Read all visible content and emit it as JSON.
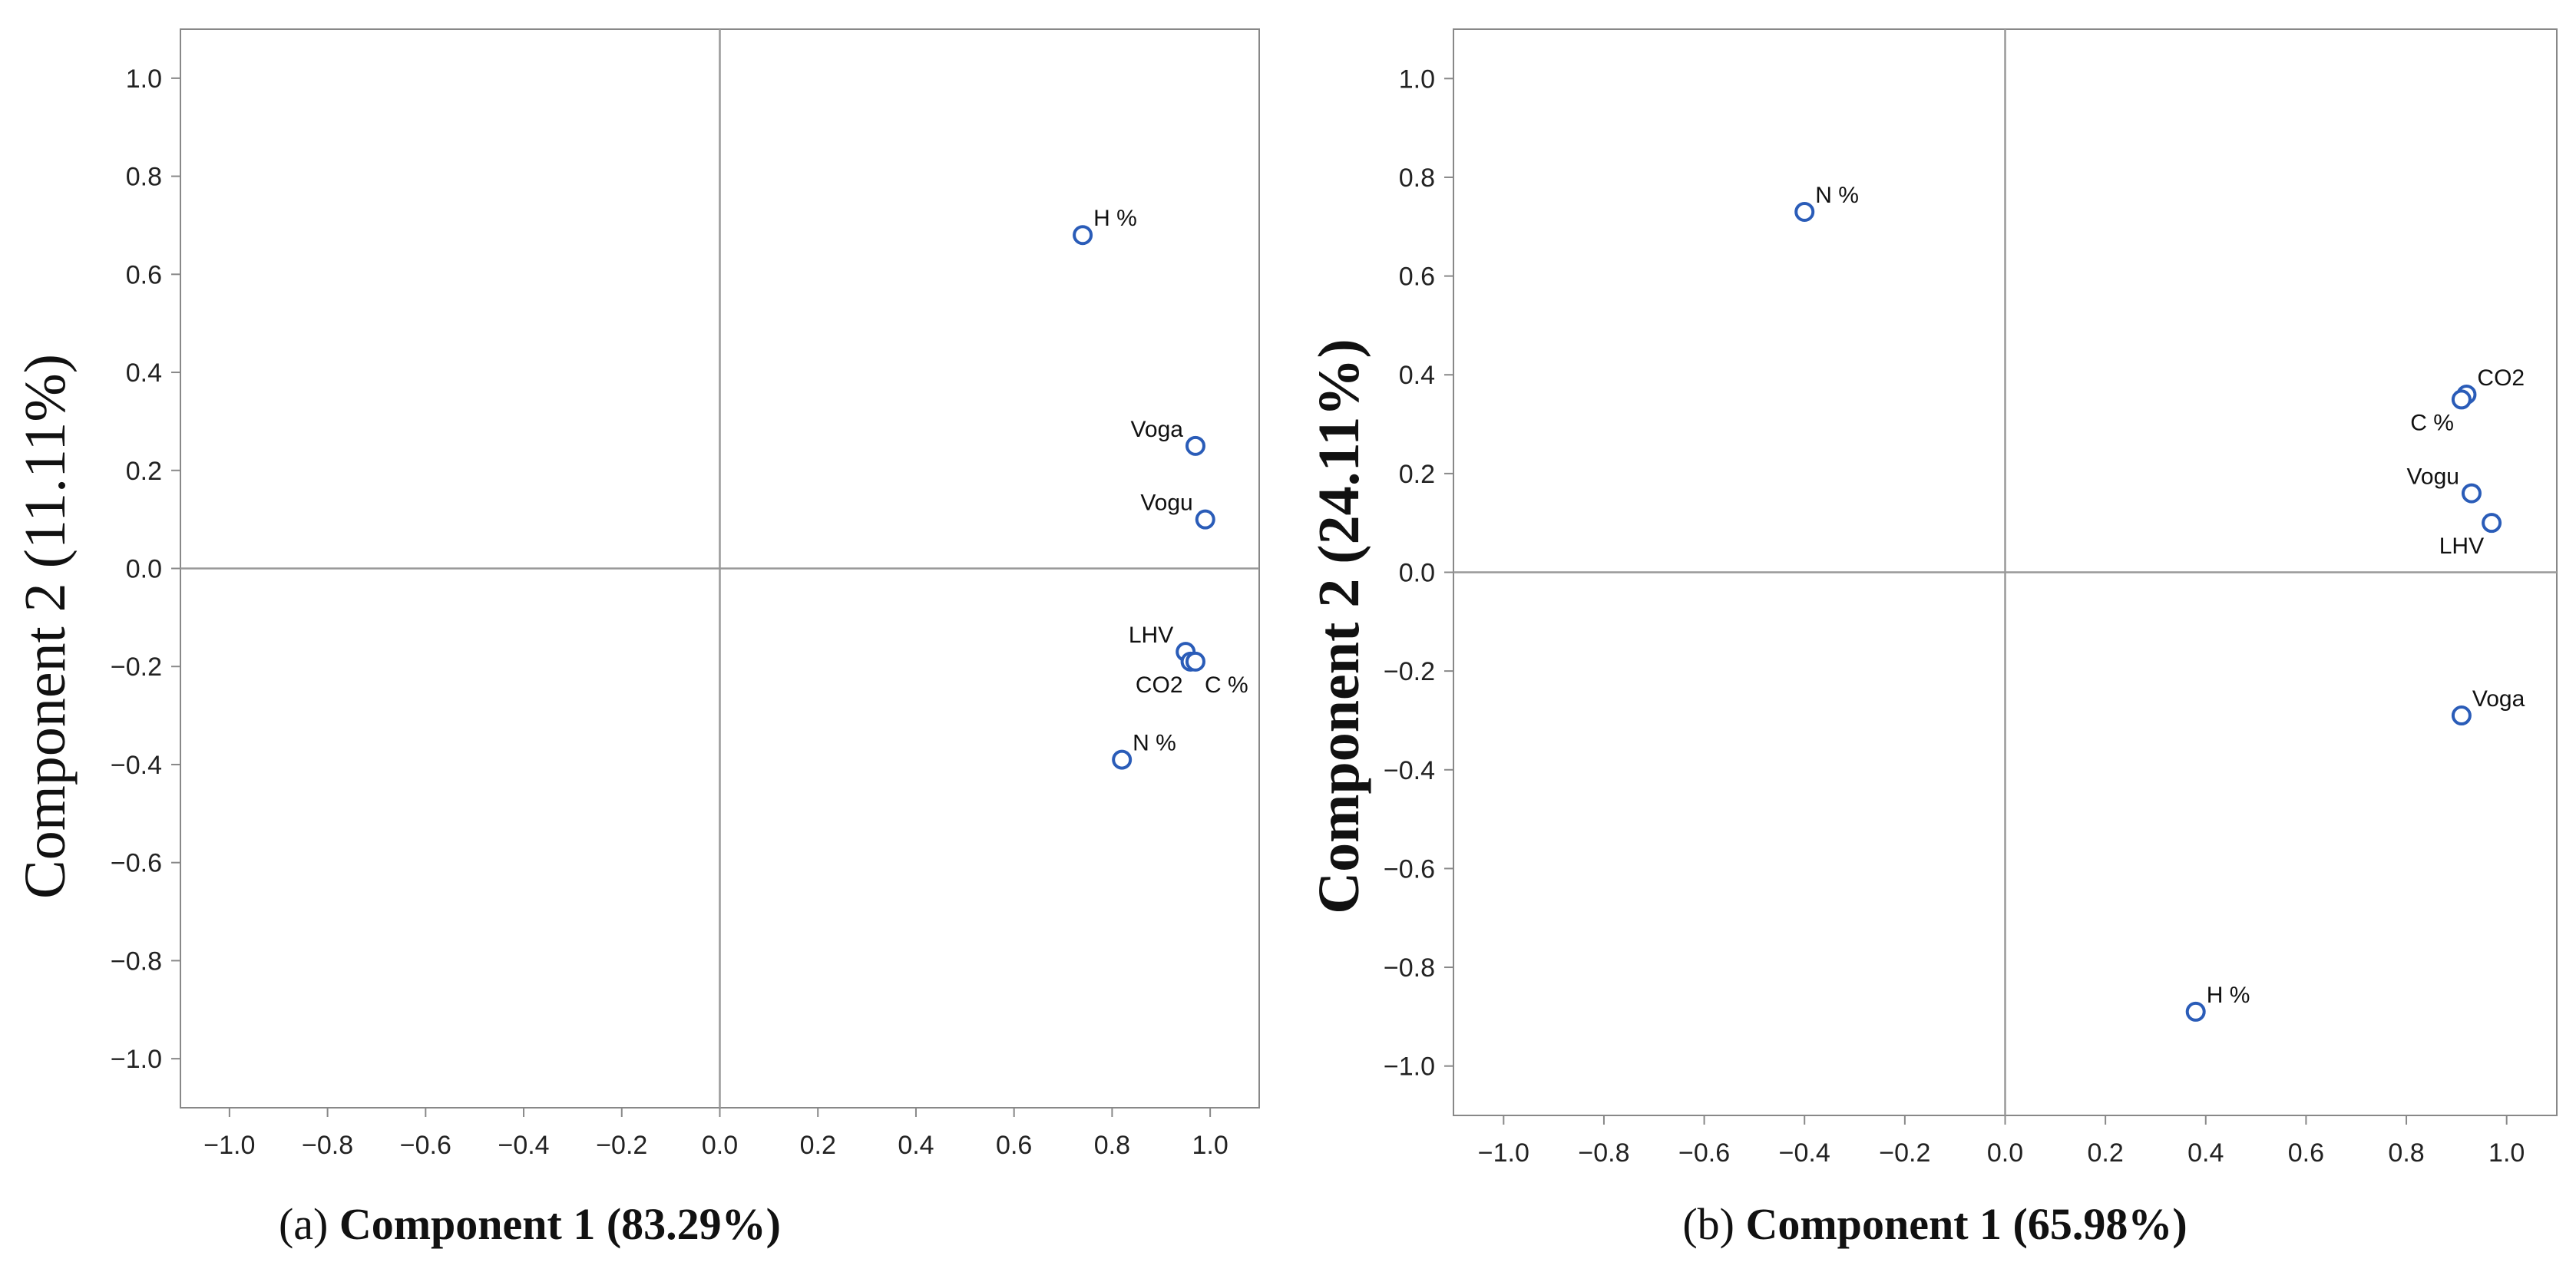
{
  "colors": {
    "frame": "#888888",
    "zero_line": "#999999",
    "marker_stroke": "#2a5cb8",
    "marker_fill": "#ffffff",
    "text": "#111111"
  },
  "chart_data": [
    {
      "type": "scatter",
      "panel_label": "(a)",
      "xlabel_text": "Component 1 (83.29%)",
      "ylabel": "Component 2 (11.11%)",
      "xlim": [
        -1.1,
        1.1
      ],
      "ylim": [
        -1.1,
        1.1
      ],
      "x_ticks": [
        "−1.0",
        "−0.8",
        "−0.6",
        "−0.4",
        "−0.2",
        "0.0",
        "0.2",
        "0.4",
        "0.6",
        "0.8",
        "1.0"
      ],
      "y_ticks": [
        "1.0",
        "0.8",
        "0.6",
        "0.4",
        "0.2",
        "0.0",
        "−0.2",
        "−0.4",
        "−0.6",
        "−0.8",
        "−1.0"
      ],
      "reference_lines": [
        "x=0",
        "y=0"
      ],
      "points": [
        {
          "label": "H %",
          "x": 0.74,
          "y": 0.68,
          "label_pos": "right"
        },
        {
          "label": "Voga",
          "x": 0.97,
          "y": 0.25,
          "label_pos": "left"
        },
        {
          "label": "Vogu",
          "x": 0.99,
          "y": 0.1,
          "label_pos": "left"
        },
        {
          "label": "LHV",
          "x": 0.95,
          "y": -0.17,
          "label_pos": "left"
        },
        {
          "label": "CO2",
          "x": 0.96,
          "y": -0.19,
          "label_pos": "below-left"
        },
        {
          "label": "C %",
          "x": 0.97,
          "y": -0.19,
          "label_pos": "below-right"
        },
        {
          "label": "N %",
          "x": 0.82,
          "y": -0.39,
          "label_pos": "right"
        }
      ]
    },
    {
      "type": "scatter",
      "panel_label": "(b)",
      "xlabel_text": "Component 1 (65.98%)",
      "ylabel": "Component 2 (24.11%)",
      "xlim": [
        -1.1,
        1.1
      ],
      "ylim": [
        -1.1,
        1.1
      ],
      "x_ticks": [
        "−1.0",
        "−0.8",
        "−0.6",
        "−0.4",
        "−0.2",
        "0.0",
        "0.2",
        "0.4",
        "0.6",
        "0.8",
        "1.0"
      ],
      "y_ticks": [
        "1.0",
        "0.8",
        "0.6",
        "0.4",
        "0.2",
        "0.0",
        "−0.2",
        "−0.4",
        "−0.6",
        "−0.8",
        "−1.0"
      ],
      "reference_lines": [
        "x=0",
        "y=0"
      ],
      "points": [
        {
          "label": "N %",
          "x": -0.4,
          "y": 0.73,
          "label_pos": "right"
        },
        {
          "label": "CO2",
          "x": 0.92,
          "y": 0.36,
          "label_pos": "right"
        },
        {
          "label": "C %",
          "x": 0.91,
          "y": 0.35,
          "label_pos": "below-left"
        },
        {
          "label": "Vogu",
          "x": 0.93,
          "y": 0.16,
          "label_pos": "left"
        },
        {
          "label": "LHV",
          "x": 0.97,
          "y": 0.1,
          "label_pos": "below-left"
        },
        {
          "label": "Voga",
          "x": 0.91,
          "y": -0.29,
          "label_pos": "right"
        },
        {
          "label": "H %",
          "x": 0.38,
          "y": -0.89,
          "label_pos": "right"
        }
      ]
    }
  ]
}
